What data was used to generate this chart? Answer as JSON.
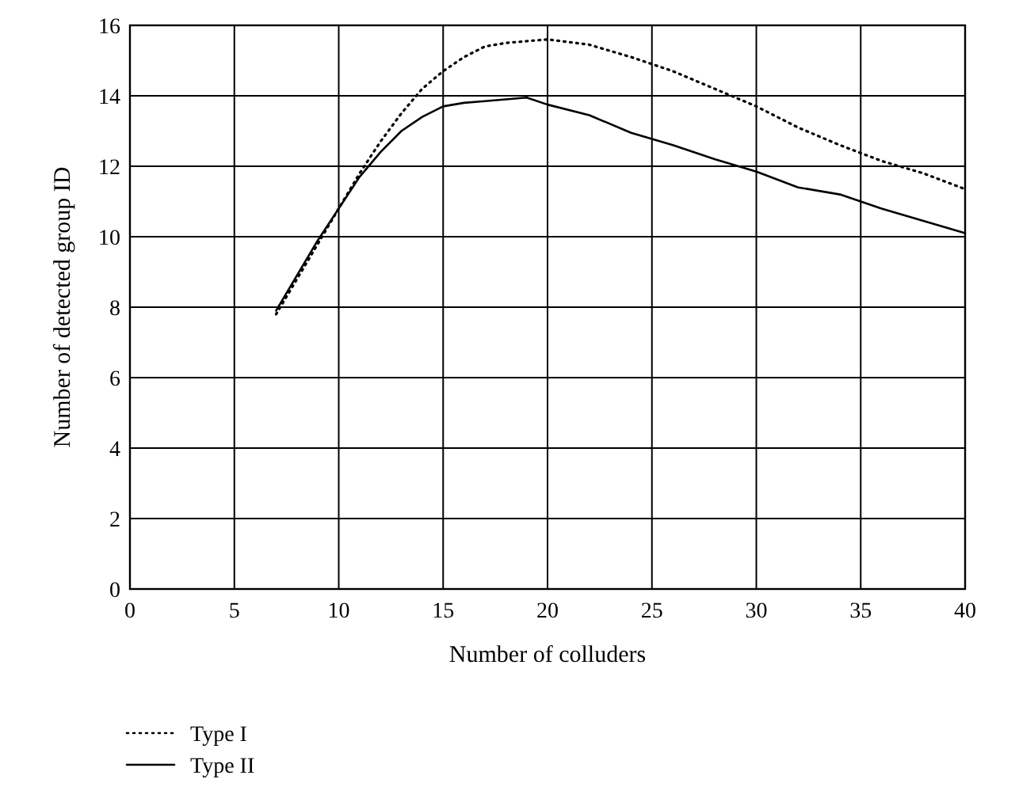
{
  "chart_data": {
    "type": "line",
    "xlabel": "Number of colluders",
    "ylabel": "Number of detected group ID",
    "xlim": [
      0,
      40
    ],
    "xticks": [
      0,
      5,
      10,
      15,
      20,
      25,
      30,
      35,
      40
    ],
    "ylim": [
      0,
      16
    ],
    "yticks": [
      0,
      2,
      4,
      6,
      8,
      10,
      12,
      14,
      16
    ],
    "grid": true,
    "legend": "bottom left",
    "series": [
      {
        "name": "Type I",
        "color": "#000000",
        "line_style": "dotted",
        "x": [
          7,
          8,
          9,
          10,
          11,
          12,
          13,
          14,
          15,
          16,
          17,
          18,
          19,
          20,
          22,
          24,
          26,
          28,
          30,
          32,
          34,
          36,
          38,
          40
        ],
        "values": [
          7.8,
          8.8,
          9.8,
          10.8,
          11.8,
          12.7,
          13.5,
          14.2,
          14.7,
          15.1,
          15.4,
          15.5,
          15.55,
          15.6,
          15.45,
          15.1,
          14.7,
          14.2,
          13.7,
          13.1,
          12.6,
          12.15,
          11.8,
          11.35
        ]
      },
      {
        "name": "Type II",
        "color": "#000000",
        "line_style": "solid",
        "x": [
          7,
          8,
          9,
          10,
          11,
          12,
          13,
          14,
          15,
          16,
          17,
          18,
          19,
          20,
          22,
          24,
          26,
          28,
          30,
          32,
          34,
          36,
          38,
          40
        ],
        "values": [
          7.9,
          8.9,
          9.9,
          10.8,
          11.7,
          12.4,
          13.0,
          13.4,
          13.7,
          13.8,
          13.85,
          13.9,
          13.95,
          13.75,
          13.45,
          12.95,
          12.6,
          12.2,
          11.85,
          11.4,
          11.2,
          10.8,
          10.45,
          10.1
        ]
      }
    ]
  }
}
